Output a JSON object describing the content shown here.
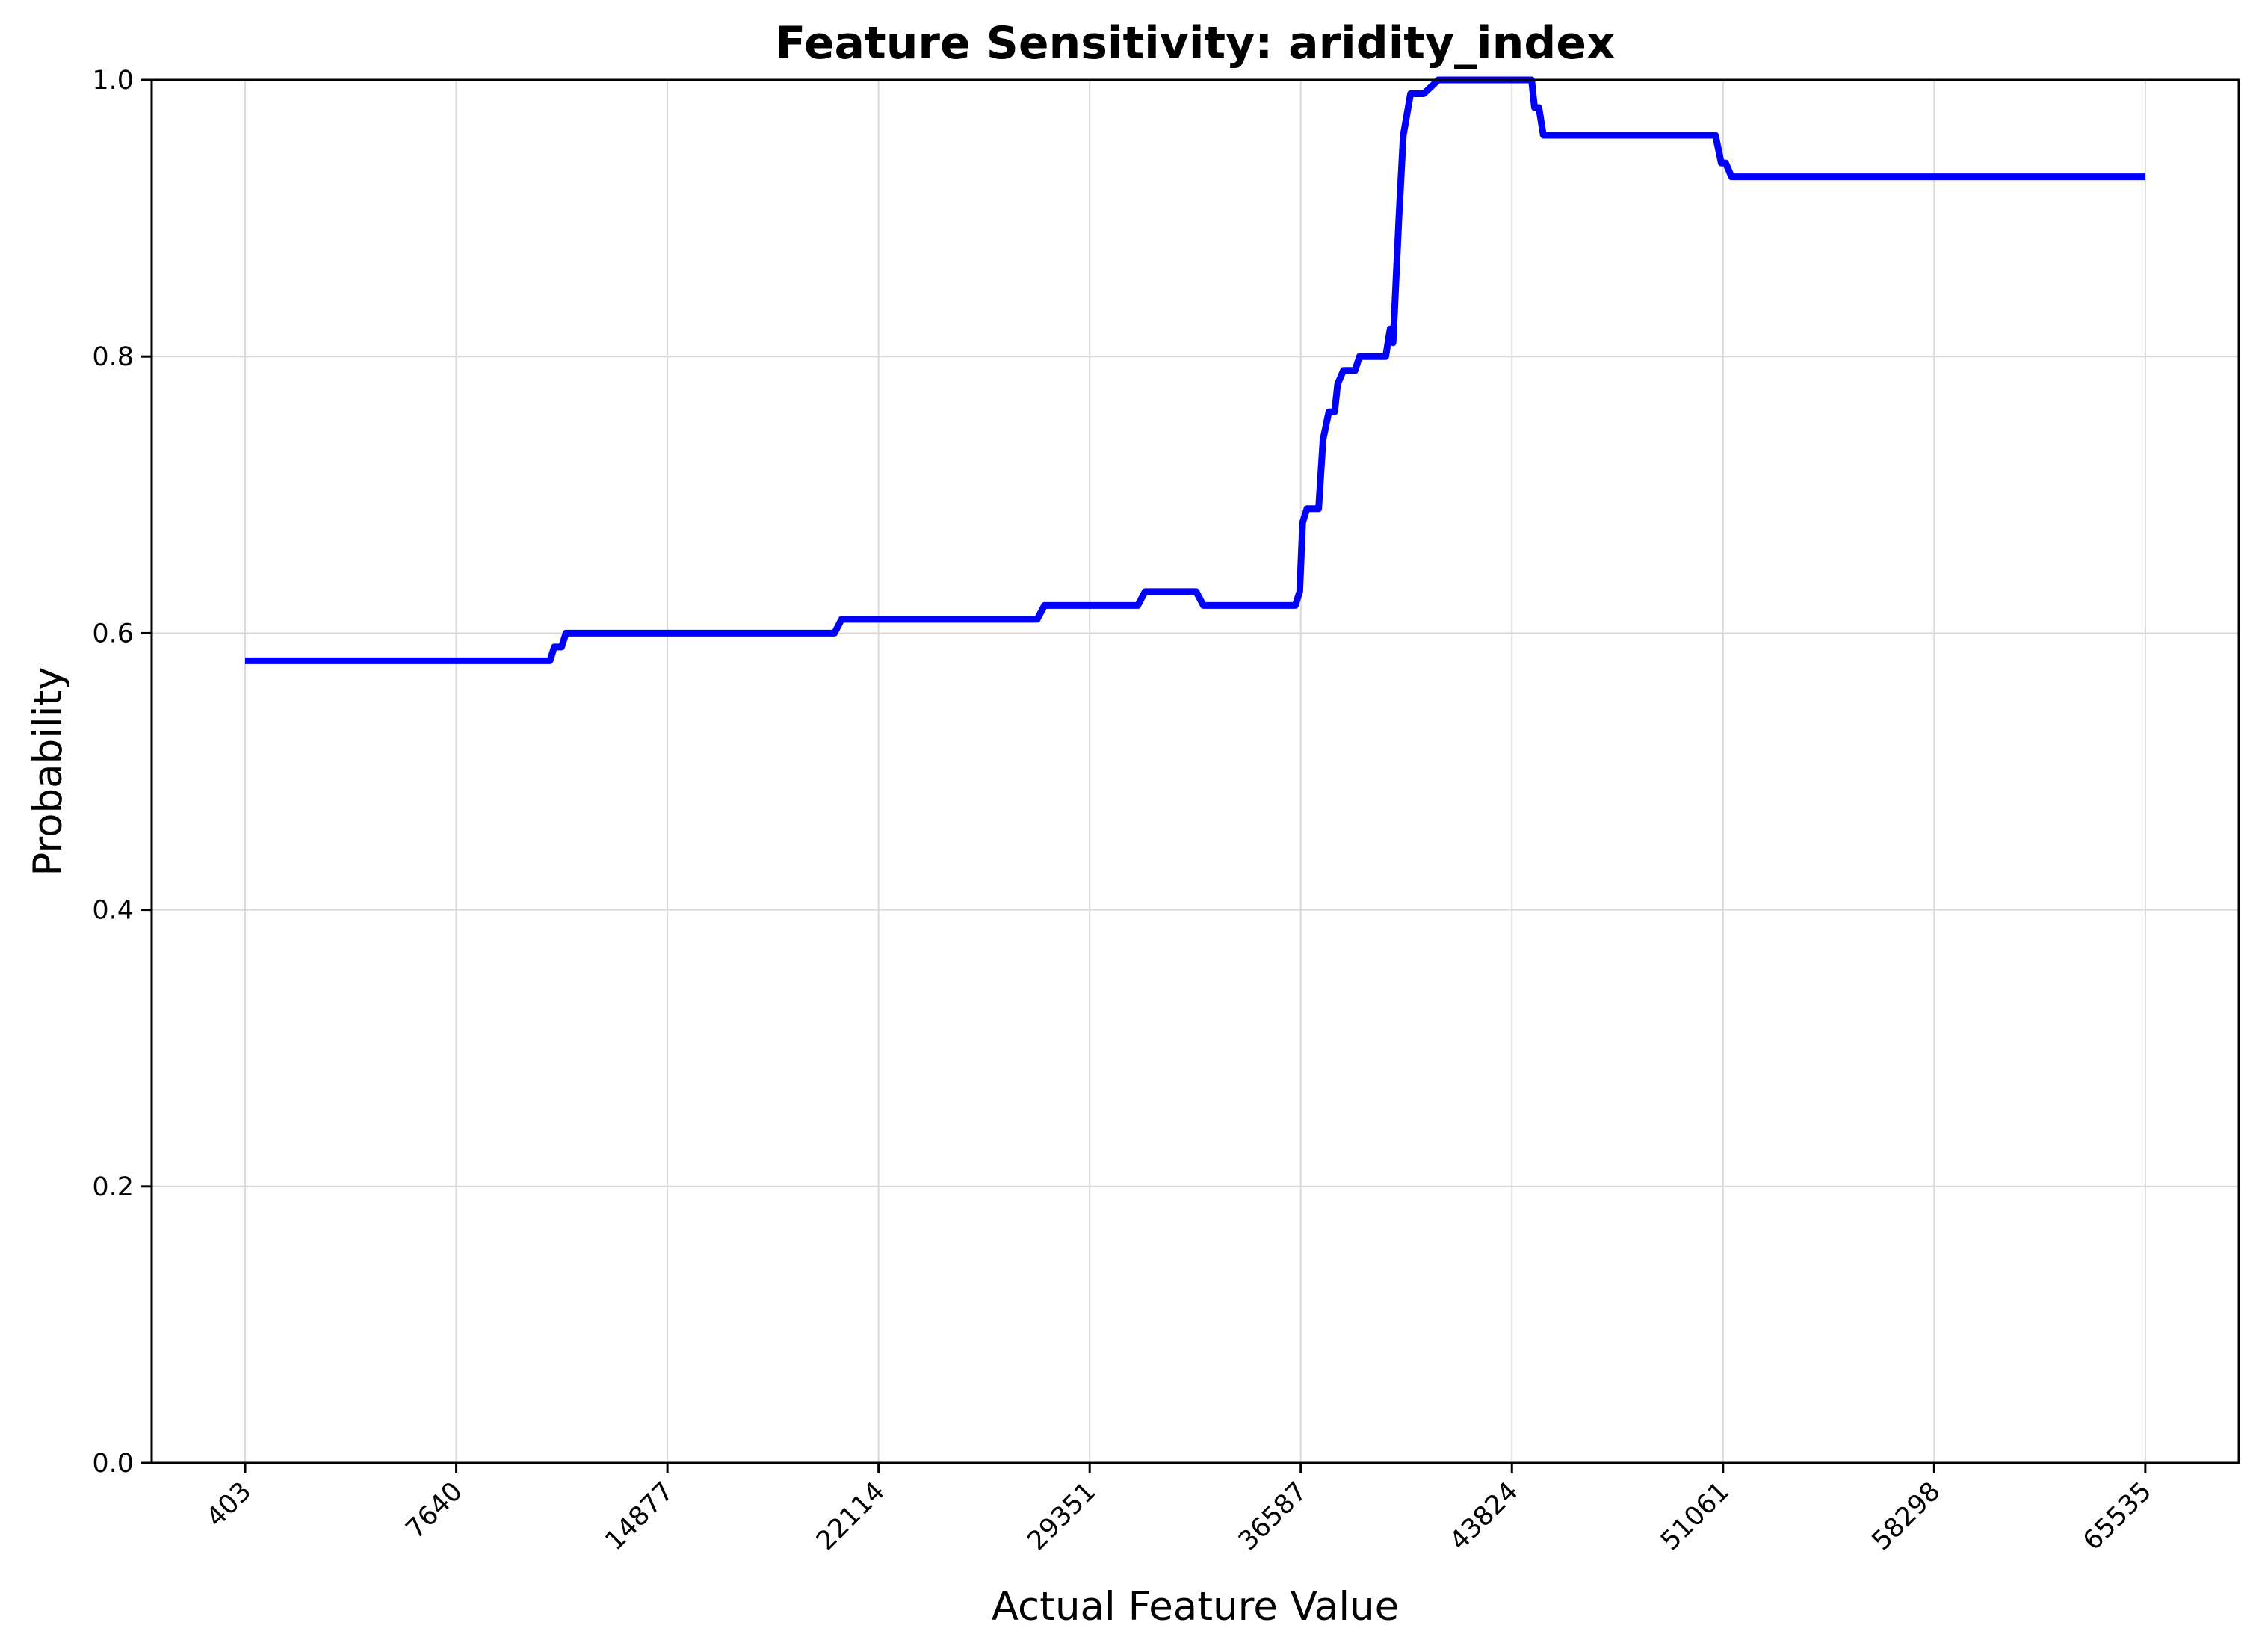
{
  "chart_data": {
    "type": "line",
    "title": "Feature Sensitivity: aridity_index",
    "xlabel": "Actual Feature Value",
    "ylabel": "Probability",
    "xlim": [
      -2800,
      68740
    ],
    "ylim": [
      0,
      1
    ],
    "xticks": [
      403,
      7640,
      14877,
      22114,
      29351,
      36587,
      43824,
      51061,
      58298,
      65535
    ],
    "xtick_labels": [
      "403",
      "7640",
      "14877",
      "22114",
      "29351",
      "36587",
      "43824",
      "51061",
      "58298",
      "65535"
    ],
    "xtick_rotation": 45,
    "yticks": [
      0.0,
      0.2,
      0.4,
      0.6,
      0.8,
      1.0
    ],
    "ytick_labels": [
      "0.0",
      "0.2",
      "0.4",
      "0.6",
      "0.8",
      "1.0"
    ],
    "grid": true,
    "legend": false,
    "series": [
      {
        "color": "#0000ff",
        "x": [
          403,
          10850,
          11000,
          11250,
          11400,
          11500,
          20600,
          20850,
          27550,
          27800,
          31000,
          31250,
          33000,
          33250,
          36400,
          36550,
          36650,
          36800,
          37200,
          37350,
          37550,
          37750,
          37850,
          38050,
          38450,
          38600,
          39500,
          39650,
          39750,
          39950,
          40100,
          40350,
          40800,
          41300,
          41550,
          41800,
          41950,
          42200,
          42500,
          42900,
          43800,
          44500,
          44600,
          44750,
          44900,
          45050,
          50800,
          51000,
          51150,
          51350,
          65535
        ],
        "y": [
          0.58,
          0.58,
          0.59,
          0.59,
          0.6,
          0.6,
          0.6,
          0.61,
          0.61,
          0.62,
          0.62,
          0.63,
          0.63,
          0.62,
          0.62,
          0.63,
          0.68,
          0.69,
          0.69,
          0.74,
          0.76,
          0.76,
          0.78,
          0.79,
          0.79,
          0.8,
          0.8,
          0.82,
          0.81,
          0.9,
          0.96,
          0.99,
          0.99,
          1.0,
          1.0,
          1.0,
          1.0,
          1.0,
          1.0,
          1.0,
          1.0,
          1.0,
          0.98,
          0.98,
          0.96,
          0.96,
          0.96,
          0.94,
          0.94,
          0.93,
          0.93
        ]
      }
    ]
  }
}
